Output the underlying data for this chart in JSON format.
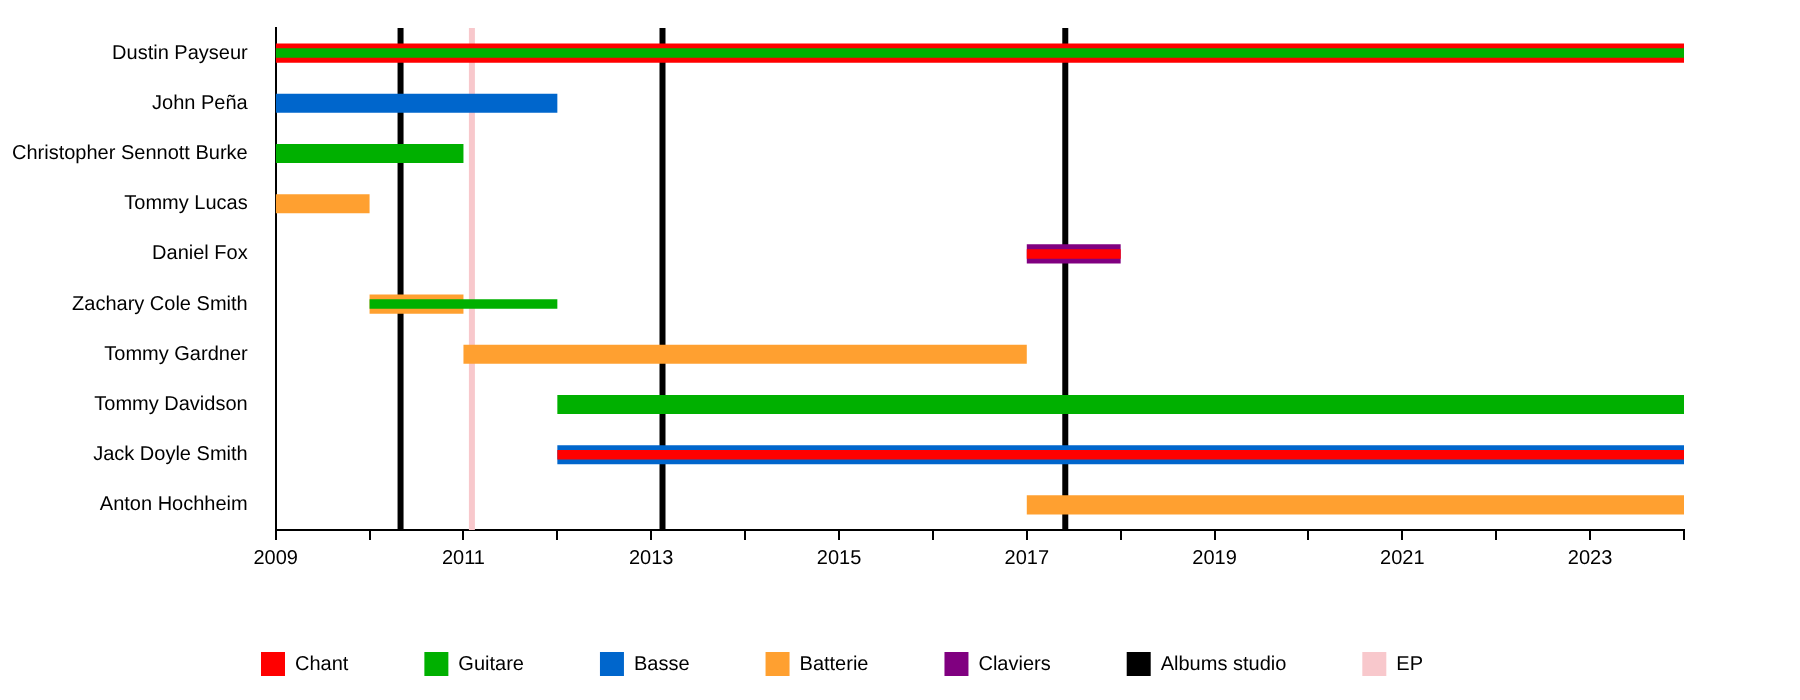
{
  "chart_data": {
    "type": "bar",
    "orientation": "horizontal",
    "categories": [
      "Dustin Payseur",
      "John Peña",
      "Christopher Sennott Burke",
      "Tommy Lucas",
      "Daniel Fox",
      "Zachary Cole Smith",
      "Tommy Gardner",
      "Tommy Davidson",
      "Jack Doyle Smith",
      "Anton Hochheim"
    ],
    "series": [
      {
        "name": "Chant",
        "color": "#ff0000",
        "values": [
          15,
          null,
          null,
          null,
          1,
          null,
          null,
          null,
          12,
          null
        ],
        "base": [
          2009,
          null,
          null,
          null,
          2017,
          null,
          null,
          null,
          2012,
          null
        ]
      },
      {
        "name": "Guitare",
        "color": "#00b000",
        "values": [
          15,
          null,
          2,
          null,
          null,
          2,
          null,
          12,
          null,
          null
        ],
        "base": [
          2009,
          null,
          2009,
          null,
          null,
          2010,
          null,
          2012,
          null,
          null
        ]
      },
      {
        "name": "Basse",
        "color": "#0066cc",
        "values": [
          null,
          3,
          null,
          null,
          null,
          null,
          null,
          null,
          12,
          null
        ],
        "base": [
          null,
          2009,
          null,
          null,
          null,
          null,
          null,
          null,
          2012,
          null
        ]
      },
      {
        "name": "Batterie",
        "color": "#ffa030",
        "values": [
          null,
          null,
          null,
          1,
          null,
          1,
          6,
          null,
          null,
          7
        ],
        "base": [
          null,
          null,
          null,
          2009,
          null,
          2010,
          2011,
          null,
          null,
          2017
        ]
      },
      {
        "name": "Claviers",
        "color": "#800080",
        "values": [
          null,
          null,
          null,
          null,
          1,
          null,
          null,
          null,
          null,
          null
        ],
        "base": [
          null,
          null,
          null,
          null,
          2017,
          null,
          null,
          null,
          null,
          null
        ]
      }
    ],
    "xlim": [
      2009,
      2024
    ],
    "xticks": [
      2009,
      {
        "value": 2010,
        "label": null
      },
      2011,
      {
        "value": 2012,
        "label": null
      },
      2013,
      {
        "value": 2014,
        "label": null
      },
      2015,
      {
        "value": 2016,
        "label": null
      },
      2017,
      {
        "value": 2018,
        "label": null
      },
      2019,
      {
        "value": 2020,
        "label": null
      },
      2021,
      {
        "value": 2022,
        "label": null
      },
      2023,
      {
        "value": 2024,
        "label": null
      }
    ],
    "ref_lines": [
      {
        "axis": "x",
        "value": 2010.33,
        "label": "Albums studio",
        "color": "#000000"
      },
      {
        "axis": "x",
        "value": 2013.12,
        "color": "#000000"
      },
      {
        "axis": "x",
        "value": 2017.41,
        "color": "#000000"
      },
      {
        "axis": "x",
        "value": 2011.09,
        "label": "EP",
        "color": "#f8c8cc"
      }
    ],
    "grid": false,
    "legend": "bottom"
  }
}
